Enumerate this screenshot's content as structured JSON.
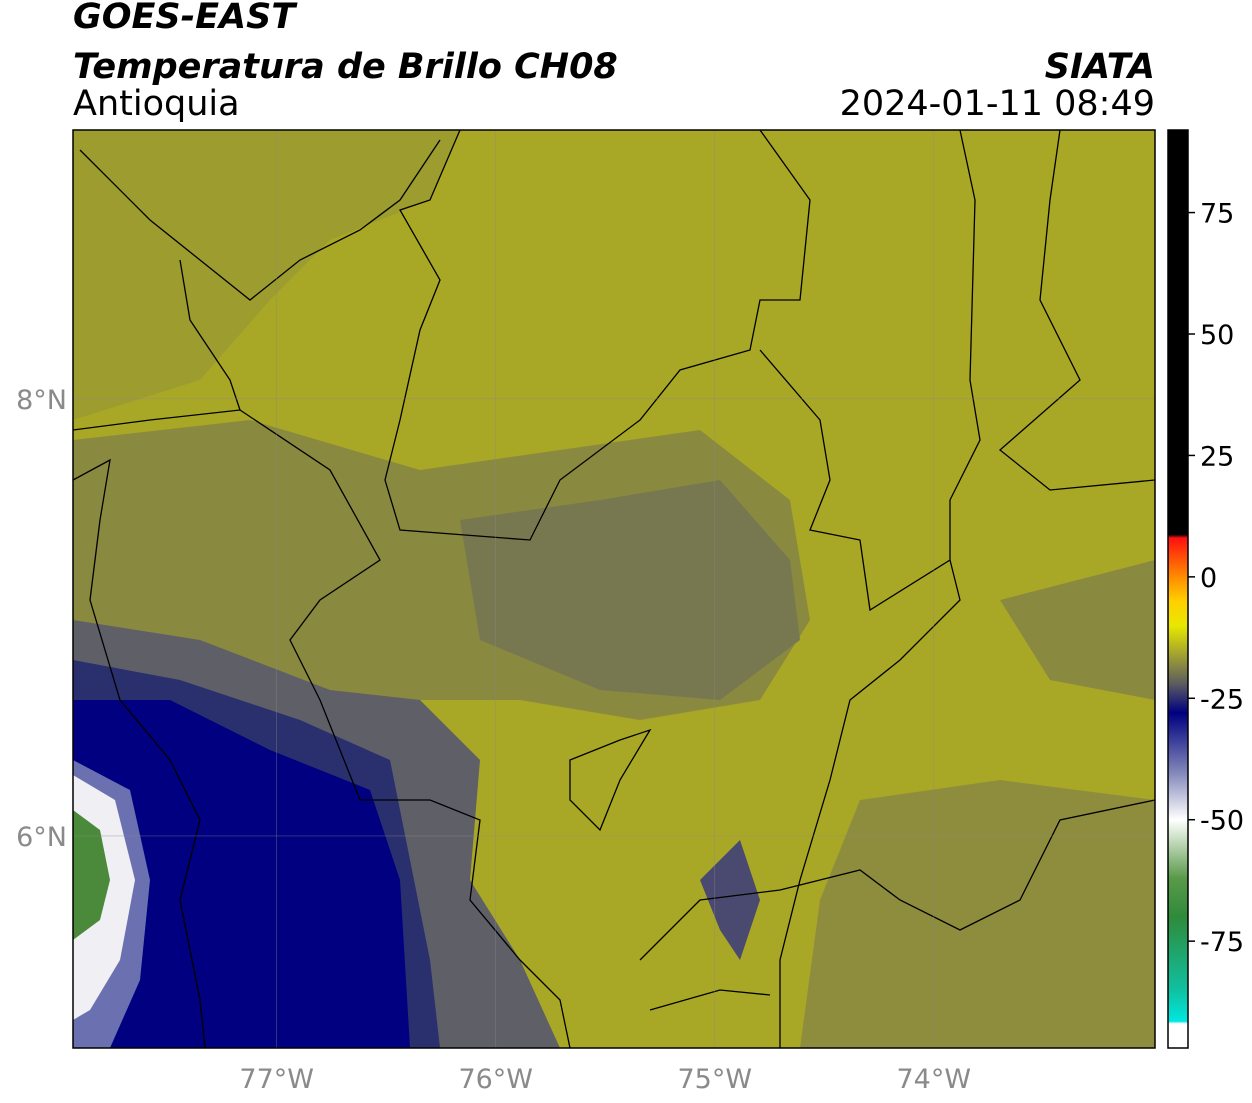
{
  "header": {
    "title": "GOES-EAST",
    "subtitle": "Temperatura de Brillo CH08",
    "region": "Antioquia",
    "source": "SIATA",
    "timestamp": "2024-01-11 08:49"
  },
  "map": {
    "xlim": [
      -77.93,
      -72.99
    ],
    "ylim": [
      5.03,
      9.23
    ],
    "xticks": [
      {
        "value": -77,
        "label": "77°W"
      },
      {
        "value": -76,
        "label": "76°W"
      },
      {
        "value": -75,
        "label": "75°W"
      },
      {
        "value": -74,
        "label": "74°W"
      }
    ],
    "yticks": [
      {
        "value": 8,
        "label": "8°N"
      },
      {
        "value": 6,
        "label": "6°N"
      }
    ],
    "grid": true
  },
  "colorbar": {
    "lim": [
      -97,
      92
    ],
    "ticks": [
      75,
      50,
      25,
      0,
      -25,
      -50,
      -75
    ],
    "stops": [
      {
        "value": -97,
        "color": "#ffffff"
      },
      {
        "value": -92,
        "color": "#ffffff"
      },
      {
        "value": -91.5,
        "color": "#00e8e0"
      },
      {
        "value": -85,
        "color": "#10c0a0"
      },
      {
        "value": -70,
        "color": "#2e8b3a"
      },
      {
        "value": -62,
        "color": "#5a9a4a"
      },
      {
        "value": -50,
        "color": "#ffffff"
      },
      {
        "value": -40,
        "color": "#7f84b8"
      },
      {
        "value": -28,
        "color": "#000080"
      },
      {
        "value": -22,
        "color": "#5c5c60"
      },
      {
        "value": -10,
        "color": "#e8e800"
      },
      {
        "value": -5,
        "color": "#ffd000"
      },
      {
        "value": 0,
        "color": "#ff8c00"
      },
      {
        "value": 8,
        "color": "#ff1010"
      },
      {
        "value": 8.7,
        "color": "#000000"
      },
      {
        "value": 92,
        "color": "#000000"
      }
    ]
  }
}
